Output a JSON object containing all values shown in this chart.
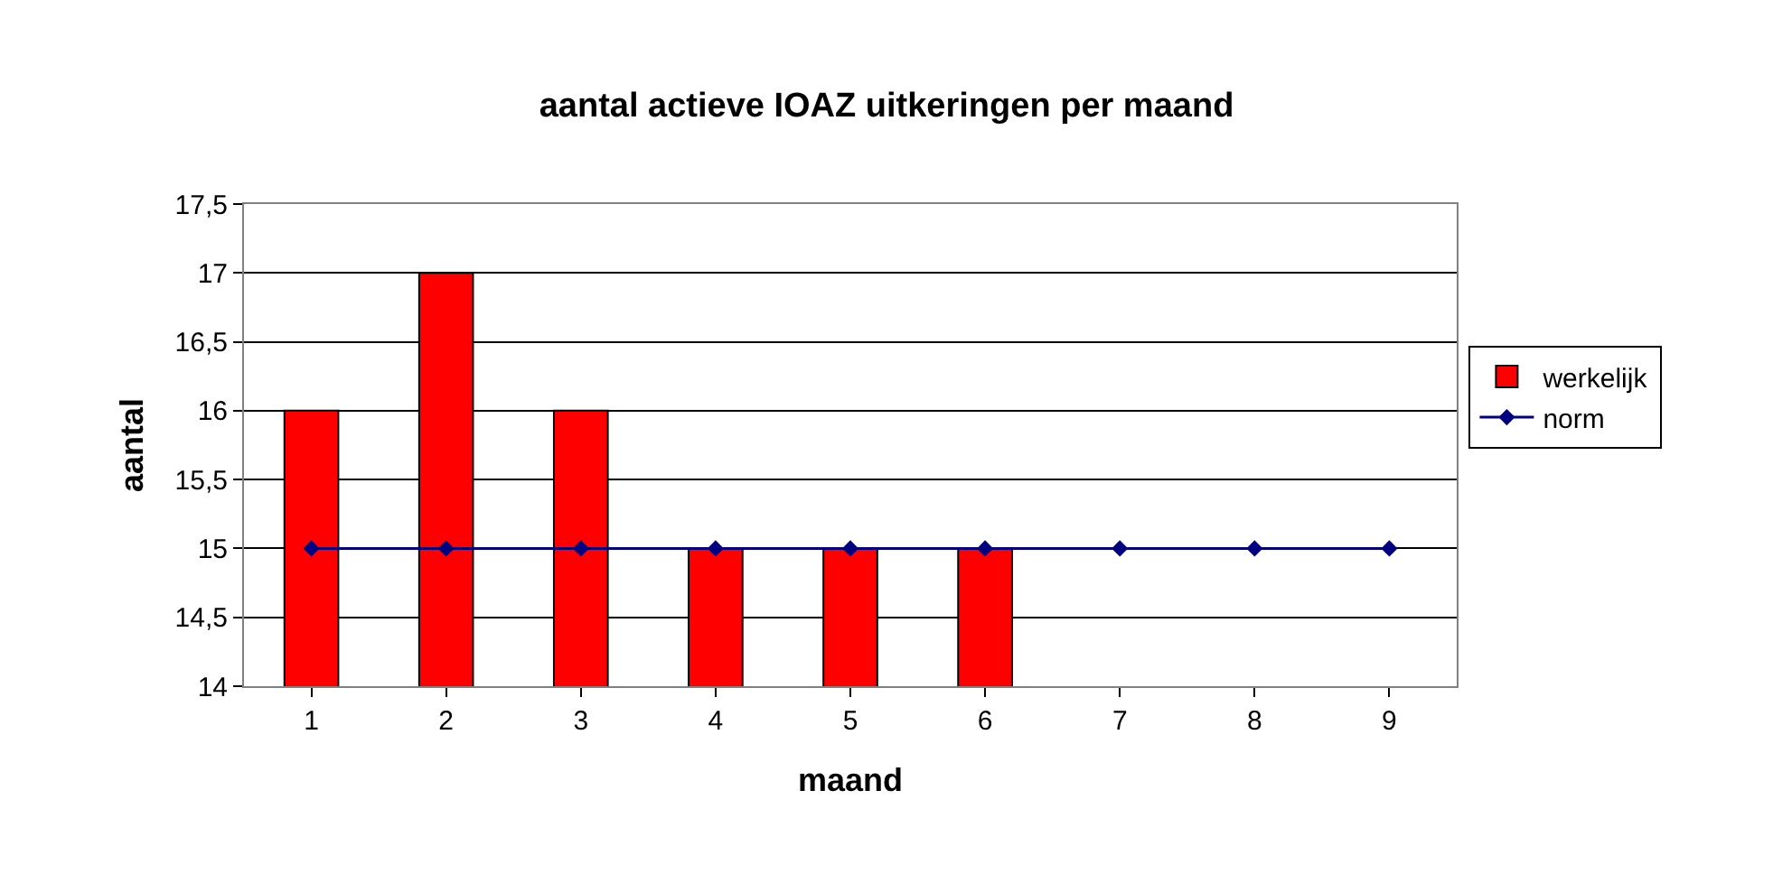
{
  "chart_data": {
    "type": "bar",
    "title": "aantal actieve IOAZ uitkeringen per maand",
    "xlabel": "maand",
    "ylabel": "aantal",
    "categories": [
      "1",
      "2",
      "3",
      "4",
      "5",
      "6",
      "7",
      "8",
      "9"
    ],
    "series": [
      {
        "name": "werkelijk",
        "color": "#ff0000",
        "values": [
          16,
          17,
          16,
          15,
          15,
          15,
          null,
          null,
          null
        ]
      },
      {
        "name": "norm",
        "type": "line",
        "color": "#000080",
        "marker": "diamond",
        "line_style": "solid",
        "values": [
          15,
          15,
          15,
          15,
          15,
          15,
          15,
          15,
          15
        ]
      }
    ],
    "ylim": [
      14,
      17.5
    ],
    "yticks": [
      14,
      {
        "value": 14.5,
        "label": "14,5"
      },
      15,
      {
        "value": 15.5,
        "label": "15,5"
      },
      16,
      {
        "value": 16.5,
        "label": "16,5"
      },
      17,
      {
        "value": 17.5,
        "label": "17,5"
      }
    ],
    "grid": "y",
    "legend": "right"
  }
}
